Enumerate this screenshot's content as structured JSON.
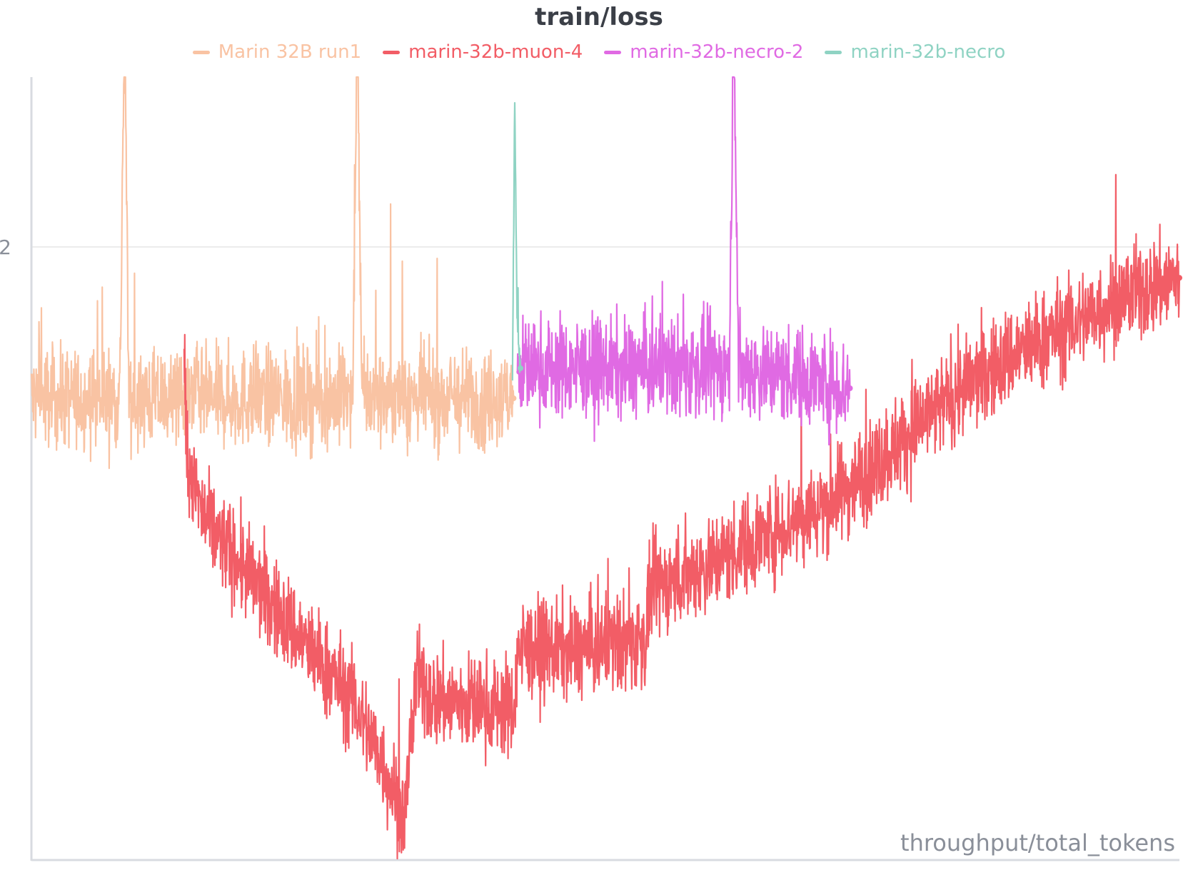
{
  "chart_data": {
    "type": "line",
    "title": "train/loss",
    "xlabel": "throughput/total_tokens",
    "ylabel": "",
    "x_range": [
      0,
      100
    ],
    "y_range": [
      1.7,
      2.09
    ],
    "y_ticks": [
      {
        "value": 2.0,
        "label": "2"
      }
    ],
    "grid": true,
    "legend_position": "top-center",
    "series": [
      {
        "name": "Marin 32B run1",
        "color": "#f9c3a3",
        "x": [
          0,
          7.7,
          8.1,
          8.5,
          15.0,
          28.0,
          28.4,
          28.8,
          36.0,
          42.0
        ],
        "y": [
          1.93,
          1.93,
          2.12,
          1.93,
          1.93,
          1.93,
          2.12,
          1.93,
          1.93,
          1.93
        ],
        "noise": 0.012
      },
      {
        "name": "marin-32b-muon-4",
        "color": "#f25d66",
        "x": [
          13.3,
          13.6,
          15.0,
          22.0,
          28.0,
          30.5,
          32.5,
          33.5,
          35.0,
          42.0,
          42.4,
          48.0,
          53.5,
          54.0,
          60.0,
          70.0,
          75.0,
          80.0,
          85.0,
          90.0,
          95.0,
          100.0
        ],
        "y": [
          1.95,
          1.9,
          1.87,
          1.82,
          1.78,
          1.75,
          1.72,
          1.79,
          1.78,
          1.775,
          1.805,
          1.805,
          1.81,
          1.835,
          1.85,
          1.88,
          1.905,
          1.93,
          1.95,
          1.965,
          1.98,
          1.99
        ],
        "noise": 0.012
      },
      {
        "name": "marin-32b-necro-2",
        "color": "#e06ae3",
        "x": [
          42.3,
          42.6,
          46.0,
          50.0,
          60.0,
          60.8,
          61.2,
          61.6,
          68.0,
          71.3
        ],
        "y": [
          1.945,
          1.945,
          1.945,
          1.945,
          1.945,
          1.945,
          2.12,
          1.945,
          1.94,
          1.935
        ],
        "noise": 0.012
      },
      {
        "name": "marin-32b-necro",
        "color": "#8fd3c3",
        "x": [
          41.9,
          42.1,
          42.3,
          42.6
        ],
        "y": [
          1.94,
          2.08,
          1.97,
          1.945
        ],
        "noise": 0.004
      }
    ]
  }
}
